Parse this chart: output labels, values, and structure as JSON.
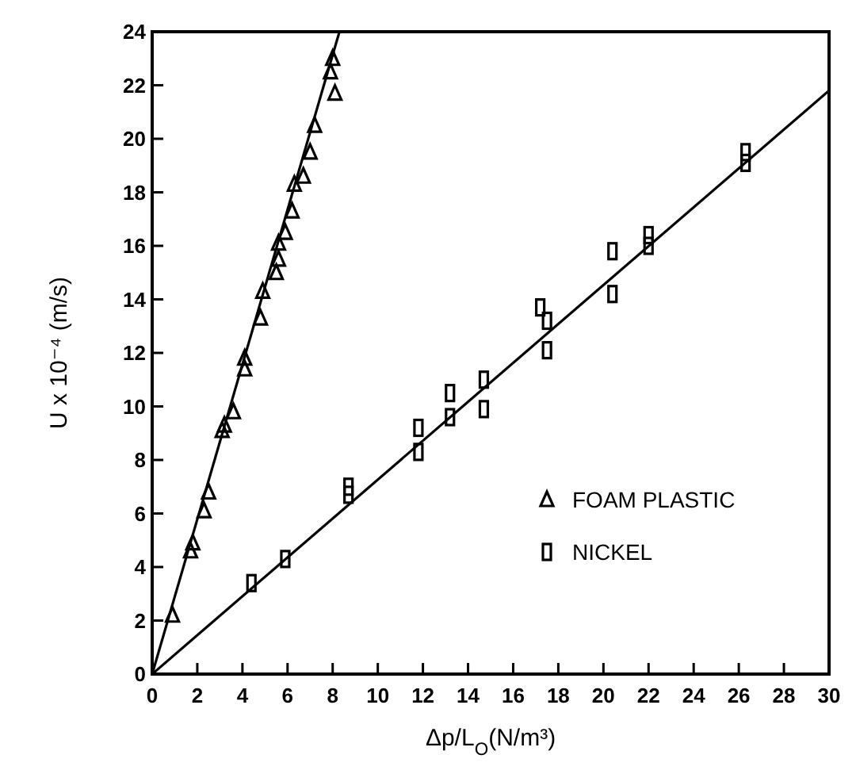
{
  "chart_data": {
    "type": "scatter",
    "xlabel": "Δp/L$_{O}$(N/m³)",
    "ylabel": "U x 10⁻⁴ (m/s)",
    "xlim": [
      0,
      30
    ],
    "ylim": [
      0,
      24
    ],
    "xticks": [
      0,
      2,
      4,
      6,
      8,
      10,
      12,
      14,
      16,
      18,
      20,
      22,
      24,
      26,
      28,
      30
    ],
    "yticks": [
      0,
      2,
      4,
      6,
      8,
      10,
      12,
      14,
      16,
      18,
      20,
      22,
      24
    ],
    "grid": false,
    "legend": "right",
    "series": [
      {
        "name": "FOAM PLASTIC",
        "color": "#000000",
        "marker": "triangle",
        "x": [
          0.9,
          1.7,
          1.8,
          2.3,
          2.5,
          3.1,
          3.2,
          3.6,
          4.1,
          4.1,
          4.8,
          4.9,
          5.5,
          5.6,
          5.6,
          5.9,
          6.2,
          6.3,
          6.7,
          7.0,
          7.2,
          7.9,
          8.0,
          8.1
        ],
        "values": [
          2.2,
          4.6,
          4.9,
          6.1,
          6.8,
          9.1,
          9.3,
          9.8,
          11.4,
          11.8,
          13.3,
          14.3,
          15.0,
          15.5,
          16.1,
          16.5,
          17.3,
          18.3,
          18.6,
          19.5,
          20.5,
          22.5,
          23.0,
          21.7
        ]
      },
      {
        "name": "NICKEL",
        "color": "#000000",
        "marker": "square",
        "x": [
          4.4,
          5.9,
          8.7,
          8.7,
          11.8,
          11.8,
          13.2,
          13.2,
          14.7,
          14.7,
          17.2,
          17.5,
          17.5,
          20.4,
          20.4,
          22,
          22,
          26.3,
          26.3
        ],
        "values": [
          3.4,
          4.3,
          6.7,
          7.0,
          8.3,
          9.2,
          9.6,
          10.5,
          9.9,
          11.0,
          13.7,
          12.1,
          13.2,
          14.2,
          15.8,
          16.0,
          16.4,
          19.1,
          19.5
        ]
      },
      {
        "type": "line",
        "color": "#000000",
        "marker": "none",
        "line_style": "solid",
        "x": [
          0,
          8.3
        ],
        "values": [
          0,
          24
        ]
      },
      {
        "type": "line",
        "color": "#000000",
        "marker": "none",
        "line_style": "solid",
        "x": [
          0,
          30
        ],
        "values": [
          0,
          21.8
        ]
      }
    ]
  }
}
